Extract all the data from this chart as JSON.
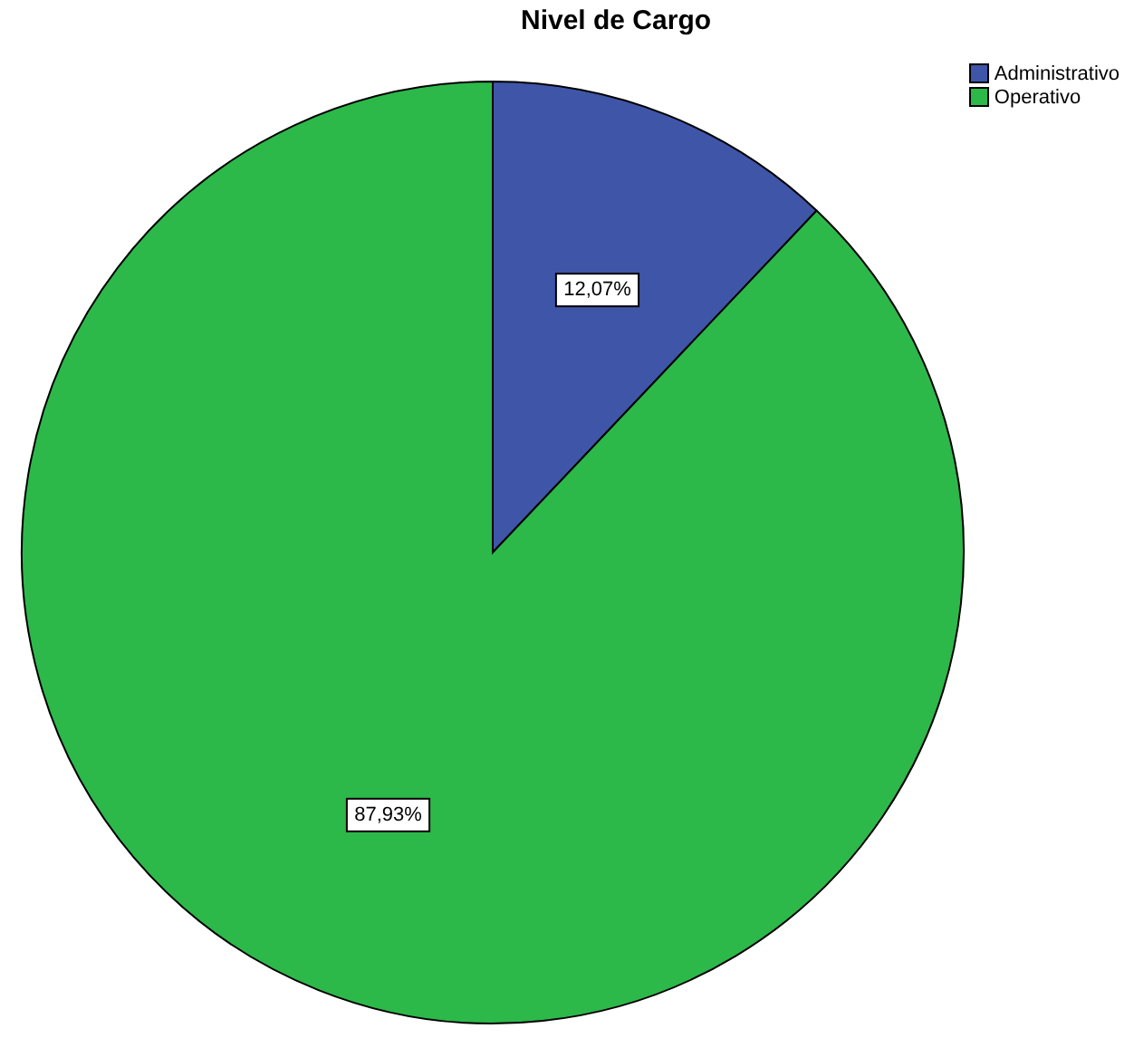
{
  "chart_data": {
    "type": "pie",
    "title": "Nivel de Cargo",
    "categories": [
      "Administrativo",
      "Operativo"
    ],
    "values": [
      12.07,
      87.93
    ],
    "colors": [
      "#3f55a8",
      "#2db84a"
    ],
    "value_labels": [
      "12,07%",
      "87,93%"
    ],
    "legend": "top right"
  }
}
